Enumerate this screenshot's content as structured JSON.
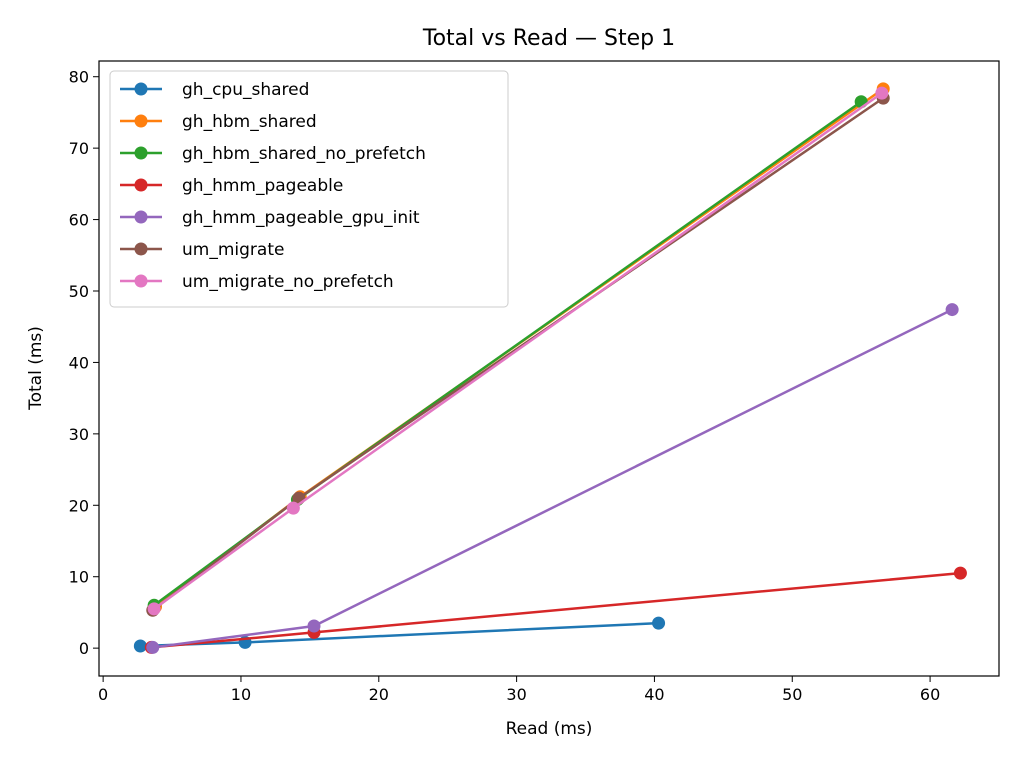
{
  "chart_data": {
    "type": "line",
    "title": "Total vs Read — Step 1",
    "xlabel": "Read (ms)",
    "ylabel": "Total (ms)",
    "xlim": [
      -0.3,
      65
    ],
    "ylim": [
      -3.9,
      82.2
    ],
    "xticks": [
      0,
      10,
      20,
      30,
      40,
      50,
      60
    ],
    "yticks": [
      0,
      10,
      20,
      30,
      40,
      50,
      60,
      70,
      80
    ],
    "grid": false,
    "legend_position": "upper-left",
    "series": [
      {
        "name": "gh_cpu_shared",
        "color": "#1f77b4",
        "x": [
          2.7,
          10.3,
          40.3
        ],
        "y": [
          0.3,
          0.8,
          3.5
        ]
      },
      {
        "name": "gh_hbm_shared",
        "color": "#ff7f0e",
        "x": [
          3.8,
          14.3,
          56.6
        ],
        "y": [
          5.8,
          21.2,
          78.3
        ]
      },
      {
        "name": "gh_hbm_shared_no_prefetch",
        "color": "#2ca02c",
        "x": [
          3.7,
          14.1,
          55.0
        ],
        "y": [
          6.0,
          20.8,
          76.5
        ]
      },
      {
        "name": "gh_hmm_pageable",
        "color": "#d62728",
        "x": [
          3.5,
          15.3,
          62.2
        ],
        "y": [
          0.1,
          2.2,
          10.5
        ]
      },
      {
        "name": "gh_hmm_pageable_gpu_init",
        "color": "#9467bd",
        "x": [
          3.6,
          15.3,
          61.6
        ],
        "y": [
          0.1,
          3.1,
          47.4
        ]
      },
      {
        "name": "um_migrate",
        "color": "#8c564b",
        "x": [
          3.6,
          14.2,
          56.6
        ],
        "y": [
          5.3,
          21.0,
          77.0
        ]
      },
      {
        "name": "um_migrate_no_prefetch",
        "color": "#e377c2",
        "x": [
          3.7,
          13.8,
          56.5
        ],
        "y": [
          5.5,
          19.6,
          77.7
        ]
      }
    ]
  }
}
